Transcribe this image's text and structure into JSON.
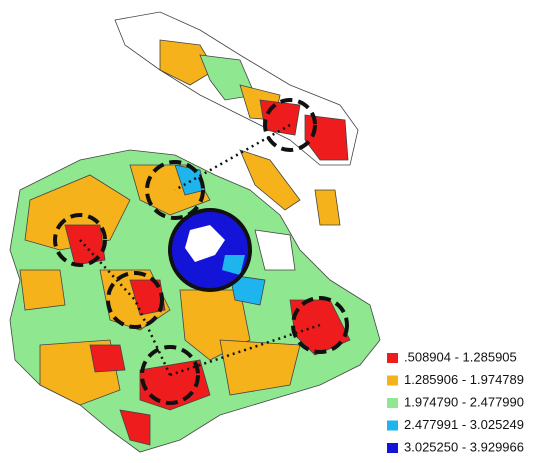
{
  "legend": {
    "items": [
      {
        "label": ".508904 - 1.285905",
        "color": "#ee1c1c"
      },
      {
        "label": "1.285906 - 1.974789",
        "color": "#f5b21a"
      },
      {
        "label": "1.974790 - 2.477990",
        "color": "#8fe88f"
      },
      {
        "label": "2.477991 - 3.025249",
        "color": "#1eb4ee"
      },
      {
        "label": "3.025250 - 3.929966",
        "color": "#1414d8"
      }
    ]
  }
}
